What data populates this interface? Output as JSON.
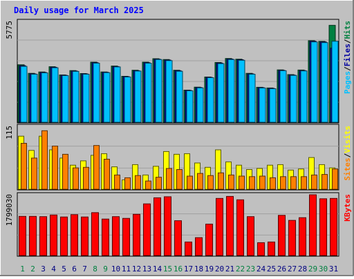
{
  "window": {
    "title": "Daily usage for March 2025"
  },
  "chart_data": [
    {
      "type": "bar",
      "panel": "pages-files-hits",
      "categories": [
        "1",
        "2",
        "3",
        "4",
        "5",
        "6",
        "7",
        "8",
        "9",
        "10",
        "11",
        "12",
        "13",
        "14",
        "15",
        "16",
        "17",
        "18",
        "19",
        "20",
        "21",
        "22",
        "23",
        "24",
        "25",
        "26",
        "27",
        "28",
        "29",
        "30",
        "31"
      ],
      "ymax_label": "5775",
      "ylim": [
        0,
        5775
      ],
      "series": [
        {
          "name": "Hits",
          "color": "#008040",
          "values": [
            3290,
            2800,
            2880,
            3180,
            2710,
            2960,
            2790,
            3440,
            2880,
            3220,
            2630,
            2980,
            3440,
            3640,
            3590,
            2980,
            1840,
            2010,
            2590,
            3420,
            3650,
            3610,
            2800,
            2000,
            1960,
            3000,
            2730,
            2990,
            4670,
            4630,
            5550
          ]
        },
        {
          "name": "Files",
          "color": "#0000a0",
          "values": [
            3240,
            2770,
            2850,
            3150,
            2690,
            2930,
            2770,
            3410,
            2860,
            3190,
            2610,
            2950,
            3410,
            3610,
            3560,
            2950,
            1820,
            1990,
            2570,
            3390,
            3620,
            3580,
            2770,
            1980,
            1940,
            2970,
            2700,
            2960,
            4640,
            4600,
            4250
          ]
        },
        {
          "name": "Pages",
          "color": "#00c0ff",
          "values": [
            3200,
            2750,
            2830,
            3120,
            2670,
            2910,
            2750,
            3380,
            2840,
            3170,
            2590,
            2930,
            3380,
            3590,
            3530,
            2920,
            1800,
            1970,
            2550,
            3360,
            3590,
            3550,
            2750,
            1960,
            1920,
            2950,
            2680,
            2940,
            4600,
            4560,
            4640
          ]
        }
      ],
      "legend": [
        "Pages",
        "Files",
        "Hits"
      ]
    },
    {
      "type": "bar",
      "panel": "visits-sites",
      "categories": [
        "1",
        "2",
        "3",
        "4",
        "5",
        "6",
        "7",
        "8",
        "9",
        "10",
        "11",
        "12",
        "13",
        "14",
        "15",
        "16",
        "17",
        "18",
        "19",
        "20",
        "21",
        "22",
        "23",
        "24",
        "25",
        "26",
        "27",
        "28",
        "29",
        "30",
        "31"
      ],
      "ymax_label": "115",
      "ylim": [
        0,
        115
      ],
      "series": [
        {
          "name": "Visits",
          "color": "#ffff00",
          "values": [
            97,
            71,
            97,
            72,
            57,
            44,
            52,
            62,
            65,
            41,
            17,
            45,
            26,
            42,
            69,
            64,
            65,
            48,
            40,
            72,
            50,
            44,
            36,
            38,
            44,
            45,
            35,
            37,
            58,
            45,
            39
          ]
        },
        {
          "name": "Sites",
          "color": "#ff8000",
          "values": [
            84,
            57,
            107,
            79,
            64,
            39,
            40,
            80,
            55,
            26,
            21,
            25,
            15,
            22,
            38,
            36,
            24,
            29,
            25,
            30,
            26,
            24,
            23,
            24,
            21,
            23,
            23,
            23,
            26,
            27,
            37
          ]
        }
      ],
      "legend": [
        "Sites",
        "Visits"
      ]
    },
    {
      "type": "bar",
      "panel": "kbytes",
      "categories": [
        "1",
        "2",
        "3",
        "4",
        "5",
        "6",
        "7",
        "8",
        "9",
        "10",
        "11",
        "12",
        "13",
        "14",
        "15",
        "16",
        "17",
        "18",
        "19",
        "20",
        "21",
        "22",
        "23",
        "24",
        "25",
        "26",
        "27",
        "28",
        "29",
        "30",
        "31"
      ],
      "ymax_label": "1799030",
      "ylim": [
        0,
        1799030
      ],
      "series": [
        {
          "name": "KBytes",
          "color": "#ff0000",
          "values": [
            1160000,
            1160000,
            1150000,
            1200000,
            1140000,
            1210000,
            1140000,
            1270000,
            1080000,
            1150000,
            1100000,
            1220000,
            1530000,
            1710000,
            1740000,
            1030000,
            400000,
            530000,
            930000,
            1690000,
            1750000,
            1650000,
            1150000,
            380000,
            400000,
            1190000,
            1040000,
            1120000,
            1800000,
            1680000,
            1690000
          ]
        }
      ],
      "legend": [
        "KBytes"
      ]
    }
  ],
  "colors": {
    "background": "#c0c0c0",
    "panel": "#c0c0c0",
    "title": "#0000ff",
    "weekend_day": "#008040",
    "weekday": "#000080"
  },
  "weekend_days": [
    "1",
    "2",
    "8",
    "9",
    "15",
    "16",
    "22",
    "23",
    "29",
    "30"
  ]
}
